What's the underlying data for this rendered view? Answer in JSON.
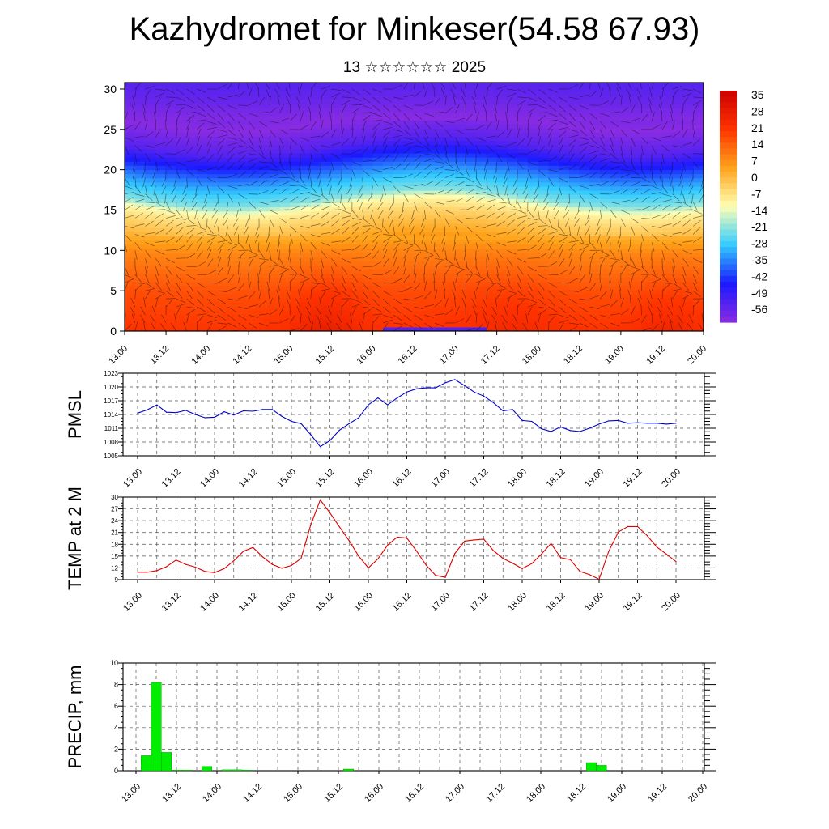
{
  "header": {
    "title": "Kazhydromet for Minkeser(54.58 67.93)",
    "subtitle": "13 ☆☆☆☆☆☆ 2025"
  },
  "x_ticks": [
    "13.00",
    "13.12",
    "14.00",
    "14.12",
    "15.00",
    "15.12",
    "16.00",
    "16.12",
    "17.00",
    "17.12",
    "18.00",
    "18.12",
    "19.00",
    "19.12",
    "20.00"
  ],
  "chart_data": [
    {
      "type": "heatmap",
      "title": "",
      "xlabel": "",
      "ylabel": "",
      "yticks": [
        0,
        5,
        10,
        15,
        20,
        25,
        30
      ],
      "ylim": [
        0,
        30.8
      ],
      "colorbar": {
        "labels": [
          "35",
          "28",
          "21",
          "14",
          "7",
          "0",
          "-7",
          "-14",
          "-21",
          "-28",
          "-35",
          "-42",
          "-49",
          "-56"
        ],
        "values": [
          35,
          28,
          21,
          14,
          7,
          0,
          -7,
          -14,
          -21,
          -28,
          -35,
          -42,
          -49,
          -56
        ]
      },
      "level_temps": [
        {
          "h": 0,
          "t": 20
        },
        {
          "h": 5,
          "t": 16
        },
        {
          "h": 10,
          "t": 8
        },
        {
          "h": 14,
          "t": -4
        },
        {
          "h": 15.5,
          "t": -10
        },
        {
          "h": 16.5,
          "t": -20
        },
        {
          "h": 19,
          "t": -30
        },
        {
          "h": 21,
          "t": -40
        },
        {
          "h": 23,
          "t": -50
        },
        {
          "h": 26,
          "t": -57
        },
        {
          "h": 29,
          "t": -52
        },
        {
          "h": 30.8,
          "t": -50
        }
      ],
      "colors": [
        "#8a2be2",
        "#1a1aff",
        "#33ccff",
        "#ffffb3",
        "#ffa31a",
        "#ff3300",
        "#cc0000"
      ]
    },
    {
      "type": "line",
      "ylabel": "PMSL",
      "ylim": [
        1005,
        1023
      ],
      "yticks": [
        1005,
        1008,
        1011,
        1014,
        1017,
        1020,
        1023
      ],
      "series": [
        {
          "color": "#0000cc",
          "values": [
            1014.3,
            1015.0,
            1016.1,
            1014.5,
            1014.4,
            1014.9,
            1014.0,
            1013.3,
            1013.4,
            1014.6,
            1013.9,
            1014.8,
            1014.7,
            1015.1,
            1015.1,
            1013.6,
            1012.5,
            1012.0,
            1009.6,
            1007.0,
            1008.3,
            1010.6,
            1012.0,
            1013.3,
            1016.1,
            1017.6,
            1016.1,
            1017.6,
            1018.9,
            1019.6,
            1019.8,
            1019.8,
            1020.9,
            1021.6,
            1020.3,
            1018.9,
            1018.0,
            1016.6,
            1014.8,
            1015.1,
            1012.7,
            1012.5,
            1010.9,
            1010.3,
            1011.3,
            1010.5,
            1010.3,
            1011.0,
            1011.9,
            1012.6,
            1012.7,
            1012.1,
            1012.2,
            1012.1,
            1012.1,
            1011.9,
            1012.1
          ]
        }
      ]
    },
    {
      "type": "line",
      "ylabel": "TEMP at 2 M",
      "ylim": [
        9,
        30
      ],
      "yticks": [
        9,
        12,
        15,
        18,
        21,
        24,
        27,
        30
      ],
      "series": [
        {
          "color": "#dd0000",
          "values": [
            10.9,
            10.9,
            11.3,
            12.3,
            14.0,
            12.9,
            12.2,
            11.1,
            10.8,
            11.8,
            13.8,
            16.2,
            17.2,
            14.8,
            12.9,
            11.9,
            12.6,
            14.4,
            22.9,
            29.3,
            26.0,
            22.4,
            18.9,
            15.0,
            12.0,
            14.3,
            17.8,
            19.8,
            19.6,
            16.3,
            12.7,
            10.1,
            9.6,
            15.7,
            18.8,
            19.1,
            19.3,
            16.4,
            14.4,
            13.2,
            11.8,
            13.1,
            15.5,
            18.2,
            14.6,
            14.1,
            11.1,
            10.3,
            9.1,
            16.2,
            21.1,
            22.5,
            22.5,
            20.2,
            17.3,
            15.5,
            13.6
          ]
        }
      ]
    },
    {
      "type": "bar",
      "ylabel": "PRECIP, mm",
      "ylim": [
        0,
        10
      ],
      "yticks": [
        0,
        2,
        4,
        6,
        8,
        10
      ],
      "color": "#00ee00",
      "bars": [
        {
          "x": 1,
          "v": 1.4
        },
        {
          "x": 2,
          "v": 8.2
        },
        {
          "x": 3,
          "v": 1.7
        },
        {
          "x": 4,
          "v": 0.05
        },
        {
          "x": 5,
          "v": 0.05
        },
        {
          "x": 7,
          "v": 0.4
        },
        {
          "x": 9,
          "v": 0.08
        },
        {
          "x": 10,
          "v": 0.08
        },
        {
          "x": 11,
          "v": 0.05
        },
        {
          "x": 21,
          "v": 0.15
        },
        {
          "x": 45,
          "v": 0.75
        },
        {
          "x": 46,
          "v": 0.5
        }
      ]
    }
  ]
}
